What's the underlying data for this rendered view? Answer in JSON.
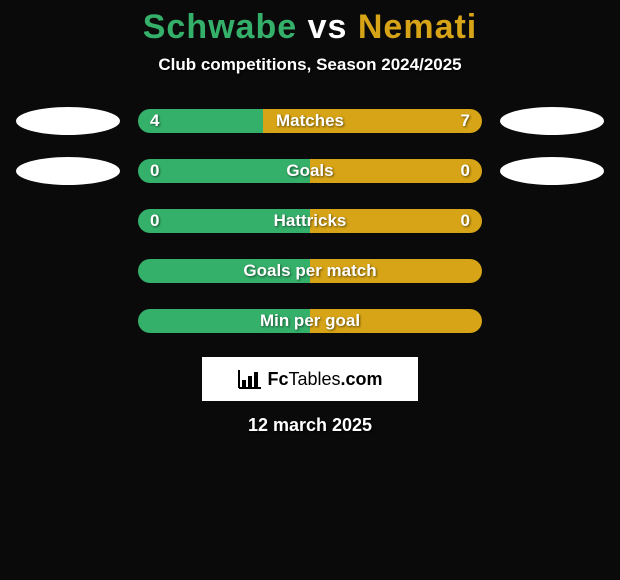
{
  "title": {
    "left": "Schwabe",
    "vs": "vs",
    "right": "Nemati"
  },
  "colors": {
    "left": "#35b06a",
    "right": "#d6a416",
    "vs": "#ffffff",
    "background": "#0a0a0a",
    "ellipse": "#ffffff",
    "logo_box": "#ffffff"
  },
  "subtitle": "Club competitions, Season 2024/2025",
  "rows": [
    {
      "label": "Matches",
      "left_val": "4",
      "right_val": "7",
      "left_pct": 36.4,
      "right_pct": 63.6,
      "show_ellipses": true,
      "show_values": true
    },
    {
      "label": "Goals",
      "left_val": "0",
      "right_val": "0",
      "left_pct": 50,
      "right_pct": 50,
      "show_ellipses": true,
      "show_values": true
    },
    {
      "label": "Hattricks",
      "left_val": "0",
      "right_val": "0",
      "left_pct": 50,
      "right_pct": 50,
      "show_ellipses": false,
      "show_values": true
    },
    {
      "label": "Goals per match",
      "left_val": "",
      "right_val": "",
      "left_pct": 50,
      "right_pct": 50,
      "show_ellipses": false,
      "show_values": false
    },
    {
      "label": "Min per goal",
      "left_val": "",
      "right_val": "",
      "left_pct": 50,
      "right_pct": 50,
      "show_ellipses": false,
      "show_values": false
    }
  ],
  "logo": {
    "text_a": "Fc",
    "text_b": "Tables",
    "text_c": ".com"
  },
  "date": "12 march 2025"
}
